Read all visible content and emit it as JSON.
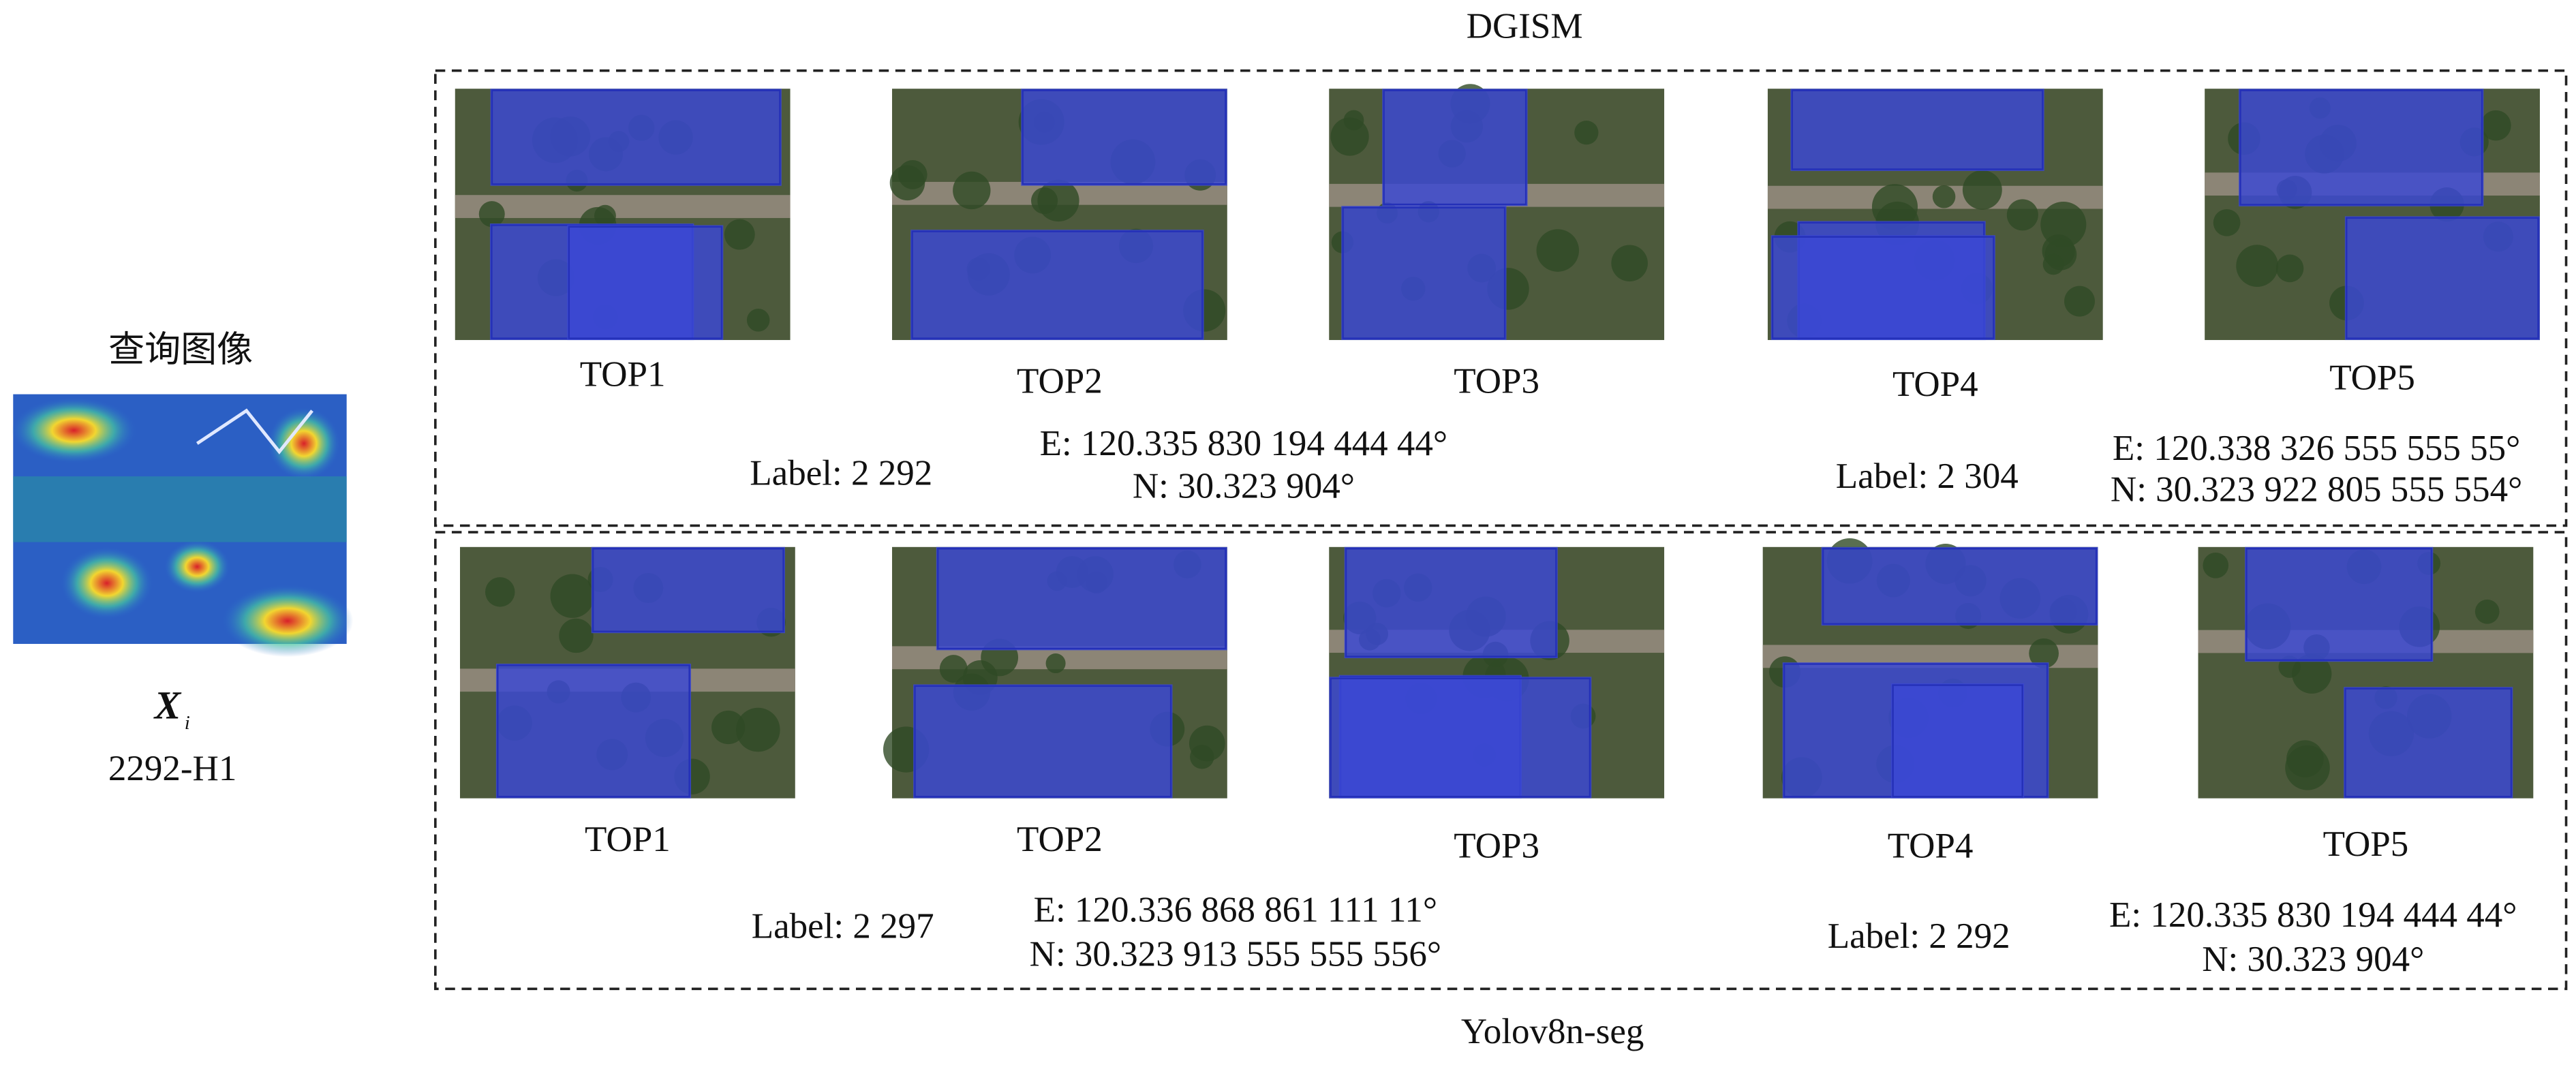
{
  "query": {
    "title": "查询图像",
    "symbol": "X",
    "subscript": "i",
    "id": "2292-H1"
  },
  "panels": [
    {
      "method": "DGISM",
      "results": [
        "TOP1",
        "TOP2",
        "TOP3",
        "TOP4",
        "TOP5"
      ],
      "matches": [
        {
          "label": "Label: 2 292",
          "east": "E: 120.335 830 194 444 44°",
          "north": "N: 30.323 904°"
        },
        {
          "label": "Label: 2 304",
          "east": "E: 120.338 326 555 555 55°",
          "north": "N: 30.323 922 805 555 554°"
        }
      ]
    },
    {
      "method": "Yolov8n-seg",
      "results": [
        "TOP1",
        "TOP2",
        "TOP3",
        "TOP4",
        "TOP5"
      ],
      "matches": [
        {
          "label": "Label: 2 297",
          "east": "E: 120.336 868 861 111 11°",
          "north": "N: 30.323 913 555 555 556°"
        },
        {
          "label": "Label: 2 292",
          "east": "E: 120.335 830 194 444 44°",
          "north": "N: 30.323 904°"
        }
      ]
    }
  ]
}
